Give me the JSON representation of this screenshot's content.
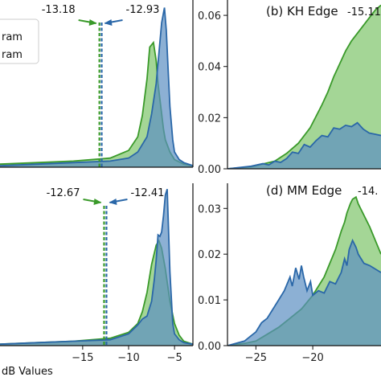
{
  "colors": {
    "green_fill": "#7dc46a",
    "green_line": "#3a9a2a",
    "blue_fill": "#5b8fc2",
    "blue_line": "#2a67a8",
    "overlap_fill": "#4f8f86",
    "axis": "#111111"
  },
  "legend": {
    "items": [
      "ram",
      "ram"
    ]
  },
  "xlabel": "dB Values",
  "chart_data": [
    {
      "panel": "a",
      "type": "area",
      "title": "",
      "xlim": [
        -24,
        -3
      ],
      "ylim": [
        0,
        0.11
      ],
      "xticks": [],
      "yticks": [],
      "vlines": [
        {
          "x": -13.18,
          "label": "-13.18",
          "color": "green"
        },
        {
          "x": -12.93,
          "label": "-12.93",
          "color": "blue"
        }
      ],
      "series": [
        {
          "color": "green",
          "x": [
            -24,
            -20,
            -16,
            -12,
            -10,
            -9,
            -8.5,
            -8,
            -7.7,
            -7.3,
            -7,
            -6.8,
            -6.5,
            -6.2,
            -6,
            -5.5,
            -5,
            -4,
            -3
          ],
          "values": [
            0.002,
            0.003,
            0.004,
            0.006,
            0.011,
            0.02,
            0.034,
            0.058,
            0.079,
            0.082,
            0.07,
            0.055,
            0.04,
            0.025,
            0.018,
            0.01,
            0.005,
            0.002,
            0.001
          ]
        },
        {
          "color": "blue",
          "x": [
            -24,
            -20,
            -16,
            -12,
            -10,
            -9,
            -8,
            -7.5,
            -7,
            -6.7,
            -6.4,
            -6.1,
            -5.9,
            -5.7,
            -5.5,
            -5.2,
            -5,
            -4.5,
            -4,
            -3
          ],
          "values": [
            0.001,
            0.002,
            0.003,
            0.004,
            0.006,
            0.01,
            0.02,
            0.035,
            0.055,
            0.075,
            0.095,
            0.105,
            0.09,
            0.065,
            0.04,
            0.018,
            0.01,
            0.005,
            0.003,
            0.001
          ]
        }
      ]
    },
    {
      "panel": "b",
      "type": "area",
      "title": "(b) KH Edge",
      "title_suffix": "-15.11",
      "xlim": [
        -27,
        -14
      ],
      "ylim": [
        0,
        0.066
      ],
      "yticks": [
        0.0,
        0.02,
        0.04,
        0.06
      ],
      "ytick_labels": [
        "0.00",
        "0.02",
        "0.04",
        "0.06"
      ],
      "series": [
        {
          "color": "green",
          "x": [
            -27,
            -25,
            -23,
            -22,
            -21,
            -20,
            -19,
            -18.5,
            -18,
            -17.5,
            -17,
            -16.5,
            -16,
            -15.5,
            -15,
            -14.5,
            -14
          ],
          "values": [
            0,
            0.0008,
            0.003,
            0.006,
            0.01,
            0.016,
            0.025,
            0.03,
            0.036,
            0.041,
            0.046,
            0.05,
            0.053,
            0.056,
            0.059,
            0.062,
            0.064
          ]
        },
        {
          "color": "blue",
          "x": [
            -27,
            -25,
            -24,
            -23.5,
            -23,
            -22.5,
            -22,
            -21.5,
            -21,
            -20.5,
            -20,
            -19.5,
            -19,
            -18.5,
            -18,
            -17.5,
            -17,
            -16.5,
            -16,
            -15.5,
            -15,
            -14.5,
            -14
          ],
          "values": [
            0,
            0.001,
            0.002,
            0.0015,
            0.003,
            0.0025,
            0.004,
            0.0065,
            0.006,
            0.0095,
            0.0085,
            0.011,
            0.013,
            0.0125,
            0.016,
            0.0155,
            0.017,
            0.0165,
            0.018,
            0.0155,
            0.014,
            0.0135,
            0.013
          ]
        }
      ]
    },
    {
      "panel": "c",
      "type": "area",
      "title": "",
      "xlim": [
        -24,
        -3
      ],
      "ylim": [
        0,
        0.11
      ],
      "xticks": [
        -15,
        -10,
        -5
      ],
      "xtick_labels": [
        "−15",
        "−10",
        "−5"
      ],
      "vlines": [
        {
          "x": -12.67,
          "label": "-12.67",
          "color": "green"
        },
        {
          "x": -12.41,
          "label": "-12.41",
          "color": "blue"
        }
      ],
      "series": [
        {
          "color": "green",
          "x": [
            -24,
            -20,
            -16,
            -12,
            -10,
            -9,
            -8.5,
            -8,
            -7.5,
            -7,
            -6.7,
            -6.4,
            -6,
            -5.5,
            -5,
            -4.5,
            -4,
            -3
          ],
          "values": [
            0.001,
            0.002,
            0.003,
            0.005,
            0.009,
            0.015,
            0.023,
            0.036,
            0.055,
            0.068,
            0.071,
            0.066,
            0.052,
            0.03,
            0.015,
            0.007,
            0.003,
            0.001
          ]
        },
        {
          "color": "blue",
          "x": [
            -24,
            -20,
            -16,
            -12,
            -10,
            -9,
            -8.5,
            -8,
            -7.5,
            -7.2,
            -7,
            -6.8,
            -6.6,
            -6.4,
            -6.2,
            -6,
            -5.8,
            -5.5,
            -5.2,
            -5,
            -4.5,
            -4,
            -3
          ],
          "values": [
            0.001,
            0.002,
            0.003,
            0.004,
            0.008,
            0.014,
            0.018,
            0.02,
            0.03,
            0.045,
            0.058,
            0.075,
            0.074,
            0.077,
            0.088,
            0.102,
            0.106,
            0.05,
            0.015,
            0.008,
            0.004,
            0.002,
            0.001
          ]
        }
      ]
    },
    {
      "panel": "d",
      "type": "area",
      "title": "(d) MM Edge",
      "title_suffix": "-14.",
      "xlim": [
        -27.5,
        -14
      ],
      "ylim": [
        0,
        0.0355
      ],
      "xticks": [
        -25,
        -20
      ],
      "xtick_labels": [
        "−25",
        "−20"
      ],
      "yticks": [
        0.0,
        0.01,
        0.02,
        0.03
      ],
      "ytick_labels": [
        "0.00",
        "0.01",
        "0.02",
        "0.03"
      ],
      "series": [
        {
          "color": "green",
          "x": [
            -27.5,
            -26,
            -25,
            -24,
            -23,
            -22,
            -21,
            -20,
            -19.5,
            -19,
            -18.5,
            -18,
            -17.5,
            -17.2,
            -17,
            -16.7,
            -16.5,
            -16.2,
            -16,
            -15,
            -14
          ],
          "values": [
            0,
            0.0005,
            0.001,
            0.0025,
            0.004,
            0.006,
            0.008,
            0.011,
            0.013,
            0.015,
            0.018,
            0.021,
            0.025,
            0.027,
            0.029,
            0.031,
            0.032,
            0.0325,
            0.031,
            0.026,
            0.02
          ]
        },
        {
          "color": "blue",
          "x": [
            -27.5,
            -26,
            -25.5,
            -25,
            -24.5,
            -24,
            -23.5,
            -23,
            -22.5,
            -22,
            -21.8,
            -21.5,
            -21.2,
            -21,
            -20.8,
            -20.5,
            -20.2,
            -20,
            -19.5,
            -19,
            -18.5,
            -18,
            -17.5,
            -17.2,
            -17,
            -16.8,
            -16.5,
            -16.2,
            -16,
            -15.5,
            -15,
            -14
          ],
          "values": [
            0,
            0.001,
            0.002,
            0.003,
            0.005,
            0.006,
            0.008,
            0.01,
            0.012,
            0.015,
            0.013,
            0.017,
            0.0145,
            0.0175,
            0.015,
            0.012,
            0.014,
            0.011,
            0.012,
            0.0115,
            0.014,
            0.0135,
            0.016,
            0.019,
            0.0175,
            0.021,
            0.023,
            0.0215,
            0.02,
            0.018,
            0.0175,
            0.016
          ]
        }
      ]
    }
  ]
}
